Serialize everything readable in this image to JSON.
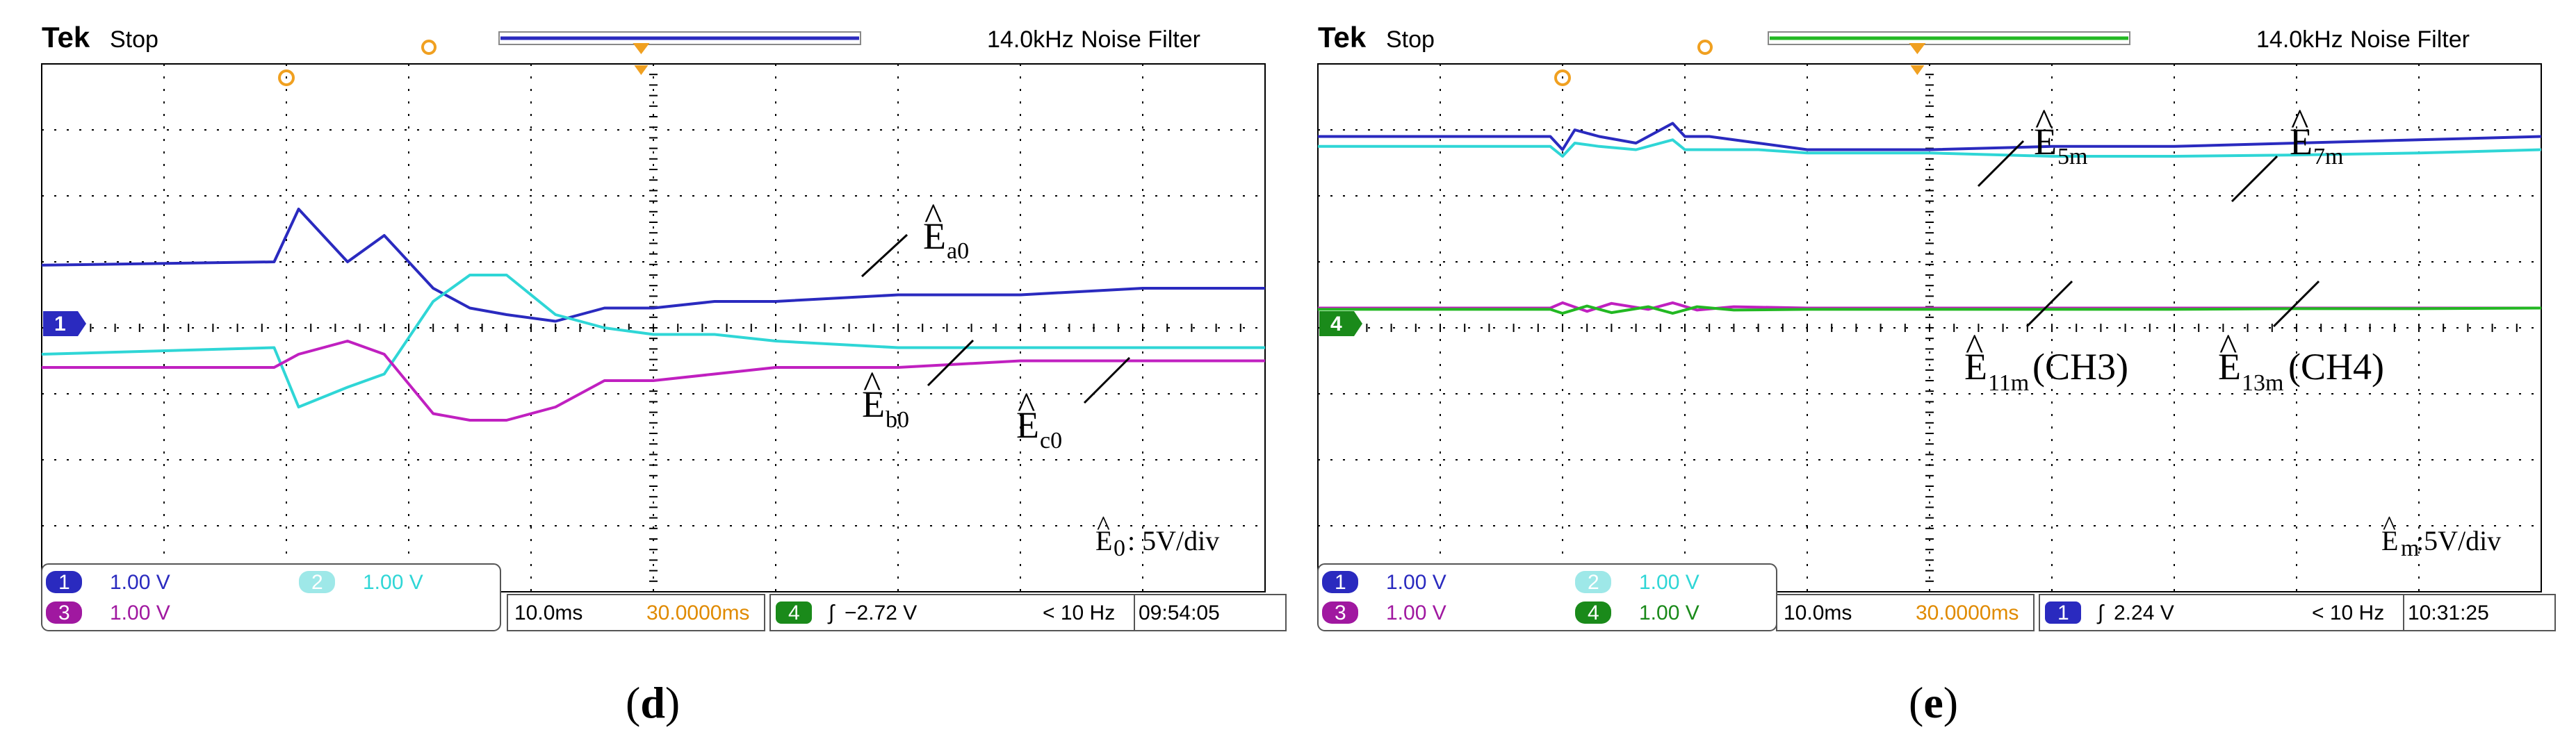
{
  "colors": {
    "ch1": "#2a2abf",
    "ch2": "#2fd6d6",
    "ch3": "#c020c0",
    "ch4": "#22b822",
    "grid": "#000000",
    "trigger": "#f0a020"
  },
  "panels": [
    {
      "caption": "d",
      "header": {
        "brand": "Tek",
        "status": "Stop",
        "freq": "14.0kHz",
        "filter": "Noise Filter"
      },
      "marker_label": "1",
      "channels_row1": [
        {
          "ch": "1",
          "value": "1.00 V"
        },
        {
          "ch": "2",
          "value": "1.00 V"
        }
      ],
      "channels_row2": [
        {
          "ch": "3",
          "value": "1.00 V"
        }
      ],
      "timebase": "10.0ms",
      "delay": "30.0000ms",
      "trigger_channel": "4",
      "trigger_level": "−2.72 V",
      "rate": "< 10 Hz",
      "time": "09:54:05",
      "scale_text": ": 5V/div",
      "scale_sym": "E",
      "scale_sub": "0"
    },
    {
      "caption": "e",
      "header": {
        "brand": "Tek",
        "status": "Stop",
        "freq": "14.0kHz",
        "filter": "Noise Filter"
      },
      "marker_label": "4",
      "channels_row1": [
        {
          "ch": "1",
          "value": "1.00 V"
        },
        {
          "ch": "2",
          "value": "1.00 V"
        }
      ],
      "channels_row2": [
        {
          "ch": "3",
          "value": "1.00 V"
        },
        {
          "ch": "4",
          "value": "1.00 V"
        }
      ],
      "timebase": "10.0ms",
      "delay": "30.0000ms",
      "trigger_channel": "1",
      "trigger_level": "2.24 V",
      "rate": "< 10 Hz",
      "time": "10:31:25",
      "scale_text": ":5V/div",
      "scale_sym": "E",
      "scale_sub": "m"
    }
  ],
  "chart_data": [
    {
      "type": "line",
      "title": "",
      "xlabel": "",
      "ylabel": "",
      "x_divisions": [
        0,
        10
      ],
      "y_divisions": [
        -4,
        4
      ],
      "grid": true,
      "series": [
        {
          "name": "Ê_a0",
          "color_key": "ch1",
          "x": [
            0,
            1.9,
            2.1,
            2.5,
            2.8,
            3.2,
            3.5,
            3.8,
            4.2,
            4.6,
            5.0,
            5.5,
            6.0,
            7.0,
            8.0,
            9.0,
            10.0
          ],
          "y": [
            0.95,
            1.0,
            1.8,
            1.0,
            1.4,
            0.6,
            0.3,
            0.2,
            0.1,
            0.3,
            0.3,
            0.4,
            0.4,
            0.5,
            0.5,
            0.6,
            0.6
          ]
        },
        {
          "name": "Ê_b0",
          "color_key": "ch2",
          "x": [
            0,
            1.9,
            2.1,
            2.5,
            2.8,
            3.2,
            3.5,
            3.8,
            4.2,
            4.6,
            5.0,
            5.5,
            6.0,
            7.0,
            8.0,
            9.0,
            10.0
          ],
          "y": [
            -0.4,
            -0.3,
            -1.2,
            -0.9,
            -0.7,
            0.4,
            0.8,
            0.8,
            0.2,
            0.0,
            -0.1,
            -0.1,
            -0.2,
            -0.3,
            -0.3,
            -0.3,
            -0.3
          ]
        },
        {
          "name": "Ê_c0",
          "color_key": "ch3",
          "x": [
            0,
            1.9,
            2.1,
            2.5,
            2.8,
            3.2,
            3.5,
            3.8,
            4.2,
            4.6,
            5.0,
            5.5,
            6.0,
            7.0,
            8.0,
            9.0,
            10.0
          ],
          "y": [
            -0.6,
            -0.6,
            -0.4,
            -0.2,
            -0.4,
            -1.3,
            -1.4,
            -1.4,
            -1.2,
            -0.8,
            -0.8,
            -0.7,
            -0.6,
            -0.6,
            -0.5,
            -0.5,
            -0.5
          ]
        }
      ],
      "annotations": [
        {
          "sym": "E",
          "sub": "a0"
        },
        {
          "sym": "E",
          "sub": "b0"
        },
        {
          "sym": "E",
          "sub": "c0"
        }
      ]
    },
    {
      "type": "line",
      "title": "",
      "xlabel": "",
      "ylabel": "",
      "x_divisions": [
        0,
        10
      ],
      "y_divisions": [
        -4,
        4
      ],
      "grid": true,
      "series": [
        {
          "name": "Ê_5m",
          "color_key": "ch1",
          "x": [
            0,
            1.9,
            2.0,
            2.1,
            2.3,
            2.6,
            2.9,
            3.0,
            3.2,
            3.6,
            4.0,
            5.0,
            6.0,
            7.0,
            8.0,
            9.0,
            10.0
          ],
          "y": [
            2.9,
            2.9,
            2.7,
            3.0,
            2.9,
            2.8,
            3.1,
            2.9,
            2.9,
            2.8,
            2.7,
            2.7,
            2.75,
            2.75,
            2.8,
            2.85,
            2.9
          ]
        },
        {
          "name": "Ê_7m",
          "color_key": "ch2",
          "x": [
            0,
            1.9,
            2.0,
            2.1,
            2.3,
            2.6,
            2.9,
            3.0,
            3.2,
            3.6,
            4.0,
            5.0,
            6.0,
            7.0,
            8.0,
            9.0,
            10.0
          ],
          "y": [
            2.75,
            2.75,
            2.6,
            2.8,
            2.75,
            2.7,
            2.85,
            2.7,
            2.7,
            2.7,
            2.65,
            2.65,
            2.6,
            2.6,
            2.62,
            2.65,
            2.7
          ]
        },
        {
          "name": "Ê_11m (CH3)",
          "color_key": "ch3",
          "x": [
            0,
            1.9,
            2.0,
            2.2,
            2.4,
            2.7,
            2.9,
            3.1,
            3.4,
            4.0,
            5.0,
            6.0,
            7.0,
            8.0,
            9.0,
            10.0
          ],
          "y": [
            0.3,
            0.3,
            0.38,
            0.25,
            0.37,
            0.28,
            0.38,
            0.27,
            0.32,
            0.3,
            0.3,
            0.3,
            0.3,
            0.3,
            0.3,
            0.3
          ]
        },
        {
          "name": "Ê_13m (CH4)",
          "color_key": "ch4",
          "x": [
            0,
            1.9,
            2.0,
            2.2,
            2.4,
            2.7,
            2.9,
            3.1,
            3.4,
            4.0,
            5.0,
            6.0,
            7.0,
            8.0,
            9.0,
            10.0
          ],
          "y": [
            0.28,
            0.28,
            0.22,
            0.33,
            0.23,
            0.32,
            0.22,
            0.32,
            0.27,
            0.28,
            0.28,
            0.28,
            0.28,
            0.29,
            0.29,
            0.3
          ]
        }
      ],
      "annotations": [
        {
          "sym": "E",
          "sub": "5m"
        },
        {
          "sym": "E",
          "sub": "7m"
        },
        {
          "sym": "E",
          "sub": "11m",
          "suffix": "(CH3)"
        },
        {
          "sym": "E",
          "sub": "13m",
          "suffix": "(CH4)"
        }
      ]
    }
  ]
}
